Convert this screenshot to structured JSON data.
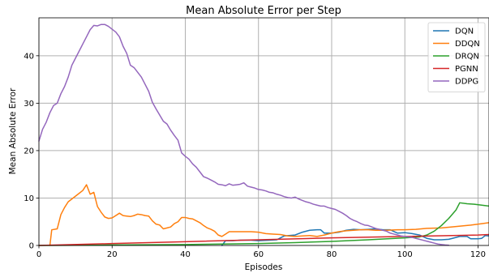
{
  "chart_data": {
    "type": "line",
    "title": "Mean Absolute Error per Step",
    "xlabel": "Episodes",
    "ylabel": "Mean Absolute Error",
    "xlim": [
      0,
      123
    ],
    "ylim": [
      0,
      48
    ],
    "xticks": [
      0,
      20,
      40,
      60,
      80,
      100,
      120
    ],
    "yticks": [
      0,
      10,
      20,
      30,
      40
    ],
    "grid": true,
    "legend_position": "top-right",
    "series": [
      {
        "name": "DQN",
        "color": "#1f77b4",
        "points": [
          [
            50,
            0
          ],
          [
            51,
            1.0
          ],
          [
            53,
            1.0
          ],
          [
            55,
            1.1
          ],
          [
            58,
            1.1
          ],
          [
            60,
            1.0
          ],
          [
            63,
            1.1
          ],
          [
            65,
            1.2
          ],
          [
            67,
            2.0
          ],
          [
            70,
            2.2
          ],
          [
            72,
            2.8
          ],
          [
            74,
            3.2
          ],
          [
            76,
            3.3
          ],
          [
            77,
            3.3
          ],
          [
            78,
            2.6
          ],
          [
            80,
            2.6
          ],
          [
            82,
            2.8
          ],
          [
            84,
            3.2
          ],
          [
            86,
            3.4
          ],
          [
            88,
            3.3
          ],
          [
            90,
            3.4
          ],
          [
            92,
            3.5
          ],
          [
            94,
            3.3
          ],
          [
            96,
            3.3
          ],
          [
            98,
            2.6
          ],
          [
            100,
            2.7
          ],
          [
            102,
            2.5
          ],
          [
            104,
            2.2
          ],
          [
            106,
            1.5
          ],
          [
            108,
            1.2
          ],
          [
            110,
            1.2
          ],
          [
            112,
            1.3
          ],
          [
            113,
            1.5
          ],
          [
            115,
            1.9
          ],
          [
            117,
            1.9
          ],
          [
            118,
            1.4
          ],
          [
            120,
            1.4
          ],
          [
            121,
            1.5
          ],
          [
            122,
            2.1
          ],
          [
            123,
            2.0
          ]
        ]
      },
      {
        "name": "DDQN",
        "color": "#ff7f0e",
        "points": [
          [
            3,
            0
          ],
          [
            3.5,
            3.3
          ],
          [
            5,
            3.5
          ],
          [
            6,
            6.5
          ],
          [
            7,
            8
          ],
          [
            8,
            9.2
          ],
          [
            9,
            9.8
          ],
          [
            10,
            10.4
          ],
          [
            11,
            11.0
          ],
          [
            12,
            11.6
          ],
          [
            13,
            12.8
          ],
          [
            14,
            10.8
          ],
          [
            15,
            11.2
          ],
          [
            16,
            8.2
          ],
          [
            17,
            7.0
          ],
          [
            18,
            6.0
          ],
          [
            19,
            5.7
          ],
          [
            20,
            5.8
          ],
          [
            21,
            6.3
          ],
          [
            22,
            6.8
          ],
          [
            23,
            6.3
          ],
          [
            24,
            6.2
          ],
          [
            25,
            6.1
          ],
          [
            26,
            6.3
          ],
          [
            27,
            6.6
          ],
          [
            28,
            6.5
          ],
          [
            29,
            6.3
          ],
          [
            30,
            6.2
          ],
          [
            31,
            5.2
          ],
          [
            32,
            4.5
          ],
          [
            33,
            4.3
          ],
          [
            34,
            3.5
          ],
          [
            35,
            3.7
          ],
          [
            36,
            3.9
          ],
          [
            37,
            4.6
          ],
          [
            38,
            5.0
          ],
          [
            39,
            5.9
          ],
          [
            40,
            5.9
          ],
          [
            41,
            5.7
          ],
          [
            42,
            5.6
          ],
          [
            43,
            5.2
          ],
          [
            44,
            4.8
          ],
          [
            45,
            4.2
          ],
          [
            46,
            3.7
          ],
          [
            47,
            3.4
          ],
          [
            48,
            3.0
          ],
          [
            49,
            2.2
          ],
          [
            50,
            1.9
          ],
          [
            51,
            2.4
          ],
          [
            52,
            2.9
          ],
          [
            54,
            2.9
          ],
          [
            56,
            2.9
          ],
          [
            58,
            2.9
          ],
          [
            60,
            2.8
          ],
          [
            62,
            2.5
          ],
          [
            64,
            2.4
          ],
          [
            66,
            2.3
          ],
          [
            68,
            2.0
          ],
          [
            70,
            1.9
          ],
          [
            72,
            2.0
          ],
          [
            74,
            2.1
          ],
          [
            76,
            1.9
          ],
          [
            78,
            2.2
          ],
          [
            80,
            2.6
          ],
          [
            82,
            2.9
          ],
          [
            84,
            3.1
          ],
          [
            86,
            3.2
          ],
          [
            88,
            3.3
          ],
          [
            90,
            3.3
          ],
          [
            92,
            3.2
          ],
          [
            95,
            3.2
          ],
          [
            98,
            3.3
          ],
          [
            100,
            3.3
          ],
          [
            103,
            3.4
          ],
          [
            106,
            3.6
          ],
          [
            110,
            3.7
          ],
          [
            114,
            4.0
          ],
          [
            118,
            4.3
          ],
          [
            121,
            4.6
          ],
          [
            123,
            4.8
          ]
        ]
      },
      {
        "name": "DRQN",
        "color": "#2ca02c",
        "points": [
          [
            0,
            0
          ],
          [
            10,
            0.05
          ],
          [
            20,
            0.1
          ],
          [
            30,
            0.15
          ],
          [
            40,
            0.2
          ],
          [
            50,
            0.3
          ],
          [
            60,
            0.4
          ],
          [
            70,
            0.6
          ],
          [
            80,
            0.85
          ],
          [
            90,
            1.2
          ],
          [
            100,
            1.6
          ],
          [
            104,
            1.8
          ],
          [
            106,
            2.2
          ],
          [
            108,
            3.0
          ],
          [
            110,
            4.2
          ],
          [
            112,
            5.7
          ],
          [
            114,
            7.5
          ],
          [
            115,
            9.0
          ],
          [
            117,
            8.8
          ],
          [
            119,
            8.7
          ],
          [
            121,
            8.5
          ],
          [
            123,
            8.3
          ]
        ]
      },
      {
        "name": "PGNN",
        "color": "#d62728",
        "points": [
          [
            0,
            0
          ],
          [
            20,
            0.4
          ],
          [
            40,
            0.8
          ],
          [
            60,
            1.2
          ],
          [
            80,
            1.6
          ],
          [
            100,
            1.9
          ],
          [
            120,
            2.2
          ],
          [
            123,
            2.3
          ]
        ]
      },
      {
        "name": "DDPG",
        "color": "#9467bd",
        "points": [
          [
            0,
            22
          ],
          [
            1,
            24.5
          ],
          [
            2,
            26
          ],
          [
            3,
            28
          ],
          [
            4,
            29.5
          ],
          [
            5,
            30
          ],
          [
            6,
            32
          ],
          [
            7,
            33.5
          ],
          [
            8,
            35.5
          ],
          [
            9,
            38
          ],
          [
            10,
            39.5
          ],
          [
            11,
            41
          ],
          [
            12,
            42.5
          ],
          [
            13,
            44
          ],
          [
            14,
            45.5
          ],
          [
            15,
            46.4
          ],
          [
            16,
            46.3
          ],
          [
            17,
            46.6
          ],
          [
            18,
            46.6
          ],
          [
            19,
            46.2
          ],
          [
            20,
            45.6
          ],
          [
            21,
            45
          ],
          [
            22,
            44
          ],
          [
            23,
            42
          ],
          [
            24,
            40.5
          ],
          [
            25,
            38
          ],
          [
            26,
            37.5
          ],
          [
            27,
            36.5
          ],
          [
            28,
            35.5
          ],
          [
            29,
            34
          ],
          [
            30,
            32.5
          ],
          [
            31,
            30.2
          ],
          [
            32,
            28.8
          ],
          [
            33,
            27.5
          ],
          [
            34,
            26.2
          ],
          [
            35,
            25.6
          ],
          [
            36,
            24.3
          ],
          [
            37,
            23.2
          ],
          [
            38,
            22.2
          ],
          [
            39,
            19.5
          ],
          [
            40,
            18.8
          ],
          [
            41,
            18.2
          ],
          [
            42,
            17.2
          ],
          [
            43,
            16.5
          ],
          [
            44,
            15.5
          ],
          [
            45,
            14.5
          ],
          [
            46,
            14.2
          ],
          [
            47,
            13.8
          ],
          [
            48,
            13.4
          ],
          [
            49,
            12.9
          ],
          [
            50,
            12.8
          ],
          [
            51,
            12.6
          ],
          [
            52,
            13.0
          ],
          [
            53,
            12.7
          ],
          [
            54,
            12.8
          ],
          [
            55,
            12.9
          ],
          [
            56,
            13.2
          ],
          [
            57,
            12.5
          ],
          [
            58,
            12.3
          ],
          [
            59,
            12.1
          ],
          [
            60,
            11.8
          ],
          [
            61,
            11.7
          ],
          [
            62,
            11.5
          ],
          [
            63,
            11.2
          ],
          [
            64,
            11.1
          ],
          [
            65,
            10.8
          ],
          [
            66,
            10.6
          ],
          [
            67,
            10.3
          ],
          [
            68,
            10.1
          ],
          [
            69,
            10.0
          ],
          [
            70,
            10.2
          ],
          [
            71,
            9.8
          ],
          [
            72,
            9.5
          ],
          [
            73,
            9.2
          ],
          [
            74,
            9.0
          ],
          [
            75,
            8.7
          ],
          [
            76,
            8.5
          ],
          [
            77,
            8.3
          ],
          [
            78,
            8.3
          ],
          [
            79,
            8.0
          ],
          [
            80,
            7.8
          ],
          [
            81,
            7.6
          ],
          [
            82,
            7.2
          ],
          [
            83,
            6.8
          ],
          [
            84,
            6.3
          ],
          [
            85,
            5.7
          ],
          [
            86,
            5.3
          ],
          [
            87,
            5.0
          ],
          [
            88,
            4.6
          ],
          [
            89,
            4.3
          ],
          [
            90,
            4.2
          ],
          [
            91,
            3.9
          ],
          [
            92,
            3.6
          ],
          [
            93,
            3.4
          ],
          [
            94,
            3.2
          ],
          [
            95,
            3.0
          ],
          [
            96,
            2.6
          ],
          [
            97,
            2.4
          ],
          [
            98,
            2.2
          ],
          [
            99,
            2.0
          ],
          [
            100,
            1.9
          ],
          [
            101,
            1.8
          ],
          [
            102,
            1.7
          ],
          [
            103,
            1.5
          ],
          [
            104,
            1.3
          ],
          [
            105,
            1.1
          ],
          [
            106,
            0.9
          ],
          [
            107,
            0.7
          ],
          [
            108,
            0.5
          ],
          [
            109,
            0.3
          ],
          [
            110,
            0.2
          ],
          [
            111,
            0.1
          ],
          [
            112,
            0.05
          ]
        ]
      }
    ]
  }
}
